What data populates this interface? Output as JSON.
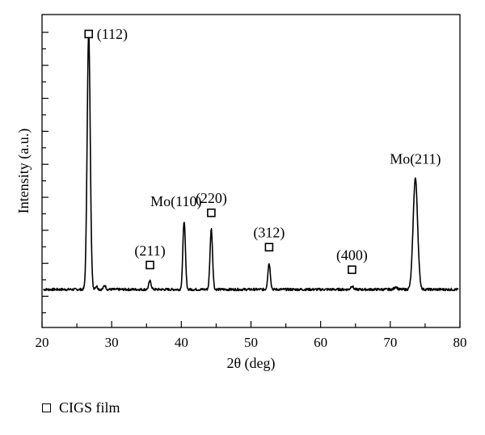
{
  "chart_data": {
    "type": "line",
    "xlabel": "2θ (deg)",
    "ylabel": "Intensity (a.u.)",
    "xlim": [
      20,
      80
    ],
    "x_ticks": [
      "20",
      "30",
      "40",
      "50",
      "60",
      "70",
      "80"
    ],
    "y_tick_labels": "none",
    "grid": false,
    "legend": {
      "placement": "bottom-left, below plot",
      "entries": [
        "CIGS film"
      ],
      "marker": "open-square"
    },
    "series": [
      {
        "color": "#000000",
        "peaks": [
          {
            "x": 26.7,
            "height": 0.935,
            "annotation": "(112)",
            "marker": "open-square"
          },
          {
            "x": 35.5,
            "height": 0.03,
            "annotation": "(211)",
            "marker": "open-square"
          },
          {
            "x": 40.4,
            "height": 0.25,
            "annotation": "Mo(110)",
            "marker": "none"
          },
          {
            "x": 44.3,
            "height": 0.22,
            "annotation": "(220)",
            "marker": "open-square"
          },
          {
            "x": 52.6,
            "height": 0.095,
            "annotation": "(312)",
            "marker": "open-square"
          },
          {
            "x": 64.5,
            "height": 0.013,
            "annotation": "(400)",
            "marker": "open-square"
          },
          {
            "x": 73.6,
            "height": 0.405,
            "annotation": "Mo(211)",
            "marker": "none"
          }
        ]
      }
    ]
  },
  "legend": {
    "label": "CIGS film"
  }
}
